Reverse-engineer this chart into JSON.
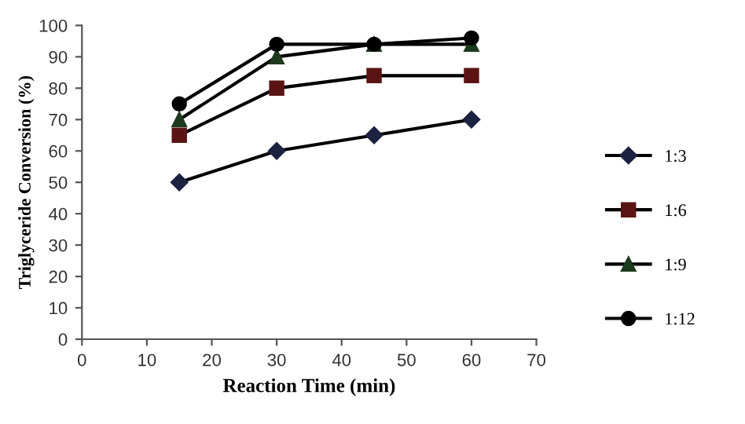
{
  "chart_data": {
    "type": "line",
    "xlabel": "Reaction Time (min)",
    "ylabel": "Triglyceride Conversion (%)",
    "x": [
      15,
      30,
      45,
      60
    ],
    "series": [
      {
        "name": "1:3",
        "color": "#1c2240",
        "marker": "diamond",
        "values": [
          50,
          60,
          65,
          70
        ]
      },
      {
        "name": "1:6",
        "color": "#5a1414",
        "marker": "square",
        "values": [
          65,
          80,
          84,
          84
        ]
      },
      {
        "name": "1:9",
        "color": "#1c3a1c",
        "marker": "triangle",
        "values": [
          70,
          90,
          94,
          94
        ]
      },
      {
        "name": "1:12",
        "color": "#000000",
        "marker": "circle",
        "values": [
          75,
          94,
          94,
          96
        ]
      }
    ],
    "xlim": [
      0,
      70
    ],
    "xticks": [
      0,
      10,
      20,
      30,
      40,
      50,
      60,
      70
    ],
    "ylim": [
      0,
      100
    ],
    "yticks": [
      0,
      10,
      20,
      30,
      40,
      50,
      60,
      70,
      80,
      90,
      100
    ],
    "grid": false,
    "legend": "right",
    "line_style": "solid"
  }
}
